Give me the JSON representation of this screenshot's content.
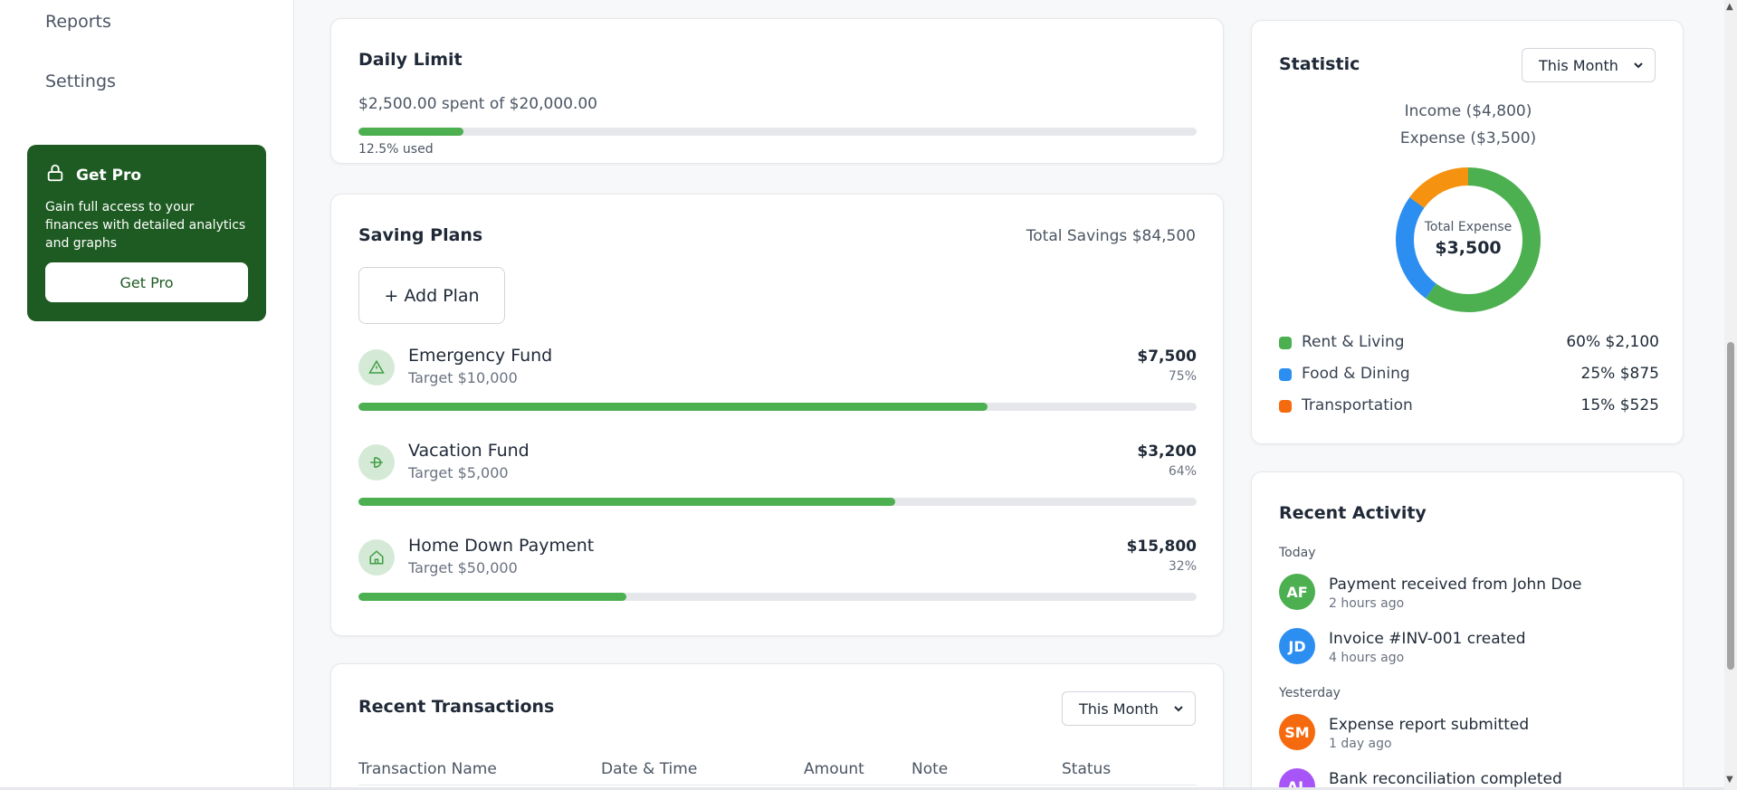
{
  "sidebar": {
    "nav": [
      "Reports",
      "Settings"
    ],
    "pro": {
      "title": "Get Pro",
      "description": "Gain full access to your finances with detailed analytics and graphs",
      "button": "Get Pro"
    }
  },
  "daily_limit": {
    "title": "Daily Limit",
    "spent_text": "$2,500.00 spent of $20,000.00",
    "used_text": "12.5% used",
    "used_fraction": 0.125
  },
  "saving_plans": {
    "title": "Saving Plans",
    "total": "Total Savings $84,500",
    "add_button": "+ Add Plan",
    "plans": [
      {
        "name": "Emergency Fund",
        "target": "Target $10,000",
        "amount": "$7,500",
        "percent": "75%",
        "progress": 0.75,
        "icon": "alert-triangle-icon"
      },
      {
        "name": "Vacation Fund",
        "target": "Target $5,000",
        "amount": "$3,200",
        "percent": "64%",
        "progress": 0.64,
        "icon": "plane-icon"
      },
      {
        "name": "Home Down Payment",
        "target": "Target $50,000",
        "amount": "$15,800",
        "percent": "32%",
        "progress": 0.32,
        "icon": "home-icon"
      }
    ]
  },
  "transactions": {
    "title": "Recent Transactions",
    "filter": "This Month",
    "columns": [
      "Transaction Name",
      "Date & Time",
      "Amount",
      "Note",
      "Status"
    ]
  },
  "statistic": {
    "title": "Statistic",
    "filter": "This Month",
    "income": "Income ($4,800)",
    "expense": "Expense ($3,500)",
    "center_label": "Total Expense",
    "center_value": "$3,500",
    "categories": [
      {
        "label": "Rent & Living",
        "value": "60% $2,100",
        "share": 60,
        "color": "#4caf50"
      },
      {
        "label": "Food & Dining",
        "value": "25% $875",
        "share": 25,
        "color": "#2b8ef0"
      },
      {
        "label": "Transportation",
        "value": "15% $525",
        "share": 15,
        "color": "#f5920f"
      }
    ]
  },
  "activity": {
    "title": "Recent Activity",
    "groups": [
      {
        "label": "Today",
        "items": [
          {
            "initials": "AF",
            "color": "#4caf50",
            "title": "Payment received from John Doe",
            "time": "2 hours ago"
          },
          {
            "initials": "JD",
            "color": "#2b8ef0",
            "title": "Invoice #INV-001 created",
            "time": "4 hours ago"
          }
        ]
      },
      {
        "label": "Yesterday",
        "items": [
          {
            "initials": "SM",
            "color": "#f56a0f",
            "title": "Expense report submitted",
            "time": "1 day ago"
          },
          {
            "initials": "AL",
            "color": "#a855f7",
            "title": "Bank reconciliation completed",
            "time": ""
          }
        ]
      }
    ]
  },
  "chart_data": {
    "type": "pie",
    "categories": [
      "Rent & Living",
      "Food & Dining",
      "Transportation"
    ],
    "values": [
      60,
      25,
      15
    ],
    "title": "",
    "xlabel": "",
    "ylabel": ""
  }
}
